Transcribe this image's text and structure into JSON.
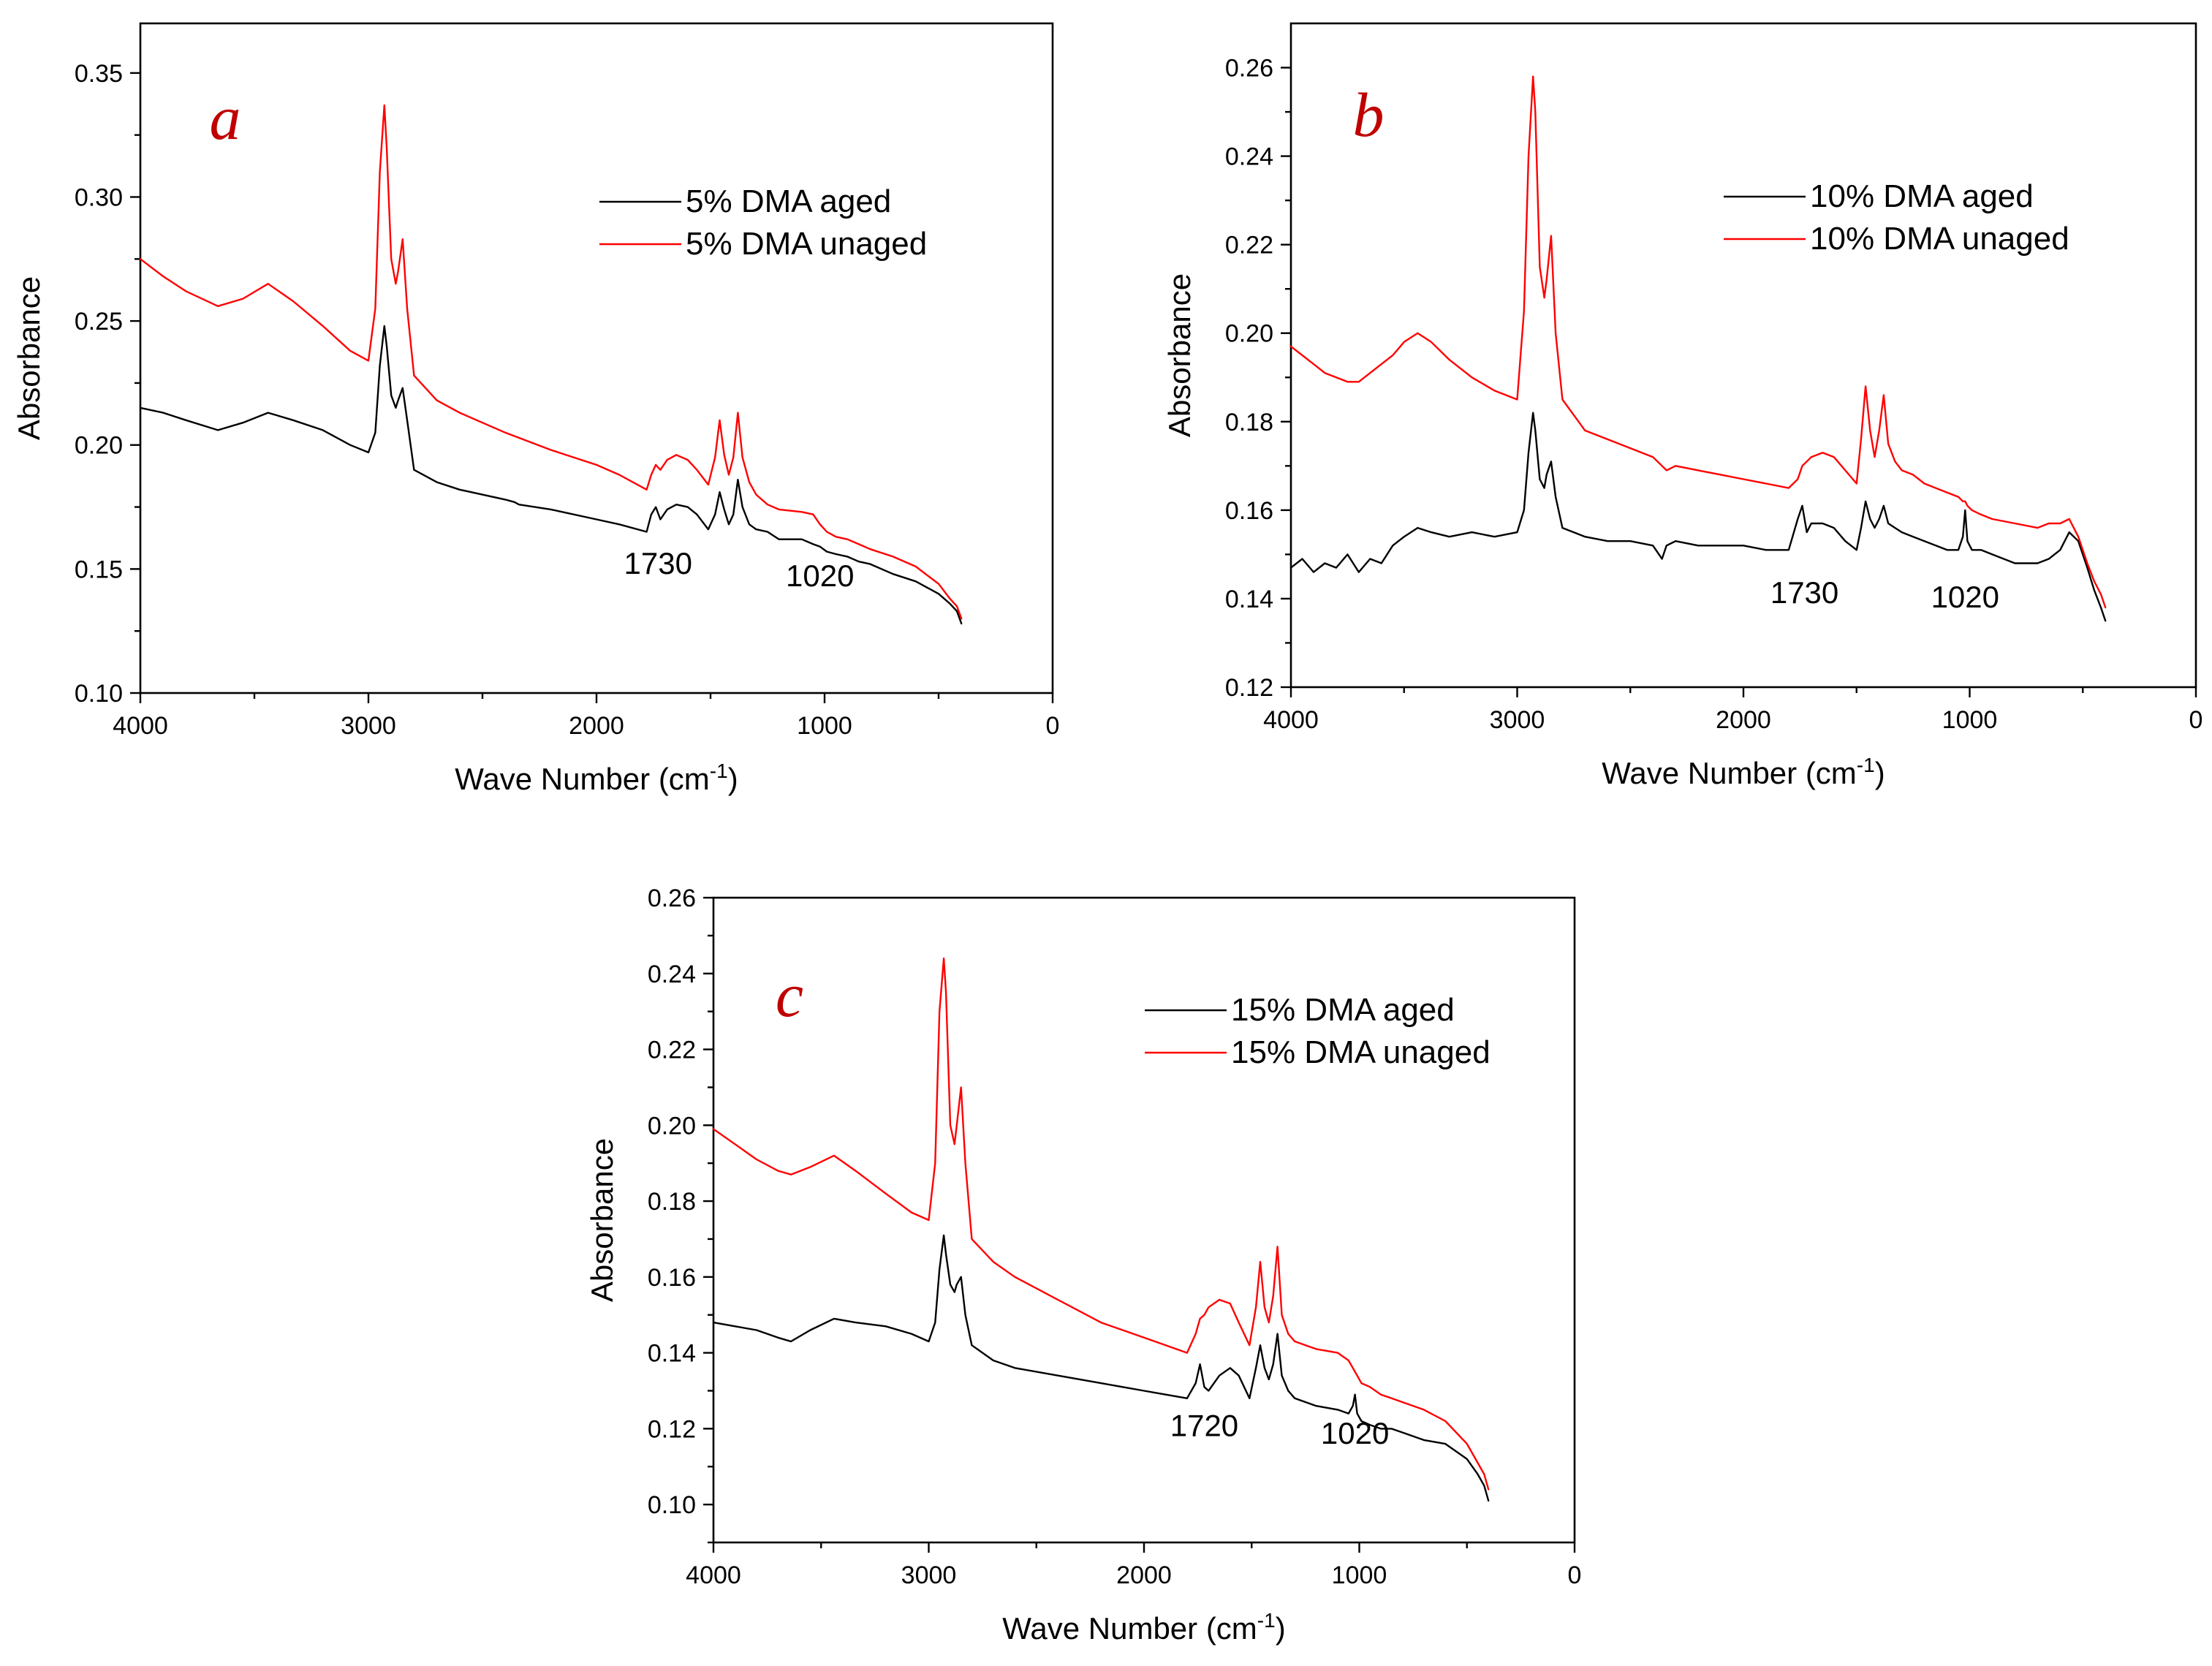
{
  "chart_data": [
    {
      "type": "line",
      "panel_label": "a",
      "xlabel": "Wave Number (cm",
      "xlabel_sup": "-1",
      "xlabel_close": ")",
      "ylabel": "Absorbance",
      "xlim": [
        4000,
        0
      ],
      "ylim": [
        0.1,
        0.37
      ],
      "x_ticks": [
        4000,
        3000,
        2000,
        1000,
        0
      ],
      "y_ticks": [
        "0.10",
        "0.15",
        "0.20",
        "0.25",
        "0.30",
        "0.35"
      ],
      "grid": false,
      "legend_position": "upper-right",
      "colors": [
        "#000000",
        "#ff0000"
      ],
      "annotations": [
        {
          "text": "1730",
          "x": 1730,
          "y": 0.148
        },
        {
          "text": "1020",
          "x": 1020,
          "y": 0.143
        }
      ],
      "series": [
        {
          "name": "5% DMA aged",
          "color": "#000000",
          "x": [
            4000,
            3900,
            3800,
            3660,
            3550,
            3440,
            3330,
            3200,
            3080,
            3000,
            2970,
            2950,
            2930,
            2920,
            2900,
            2880,
            2870,
            2850,
            2830,
            2800,
            2700,
            2600,
            2400,
            2360,
            2340,
            2200,
            2000,
            1900,
            1780,
            1760,
            1740,
            1720,
            1690,
            1650,
            1600,
            1560,
            1510,
            1480,
            1460,
            1440,
            1420,
            1400,
            1380,
            1360,
            1330,
            1300,
            1250,
            1200,
            1100,
            1050,
            1020,
            990,
            950,
            900,
            850,
            800,
            700,
            600,
            500,
            450,
            420,
            400
          ],
          "y": [
            0.215,
            0.213,
            0.21,
            0.206,
            0.209,
            0.213,
            0.21,
            0.206,
            0.2,
            0.197,
            0.205,
            0.232,
            0.248,
            0.24,
            0.22,
            0.215,
            0.218,
            0.223,
            0.21,
            0.19,
            0.185,
            0.182,
            0.178,
            0.177,
            0.176,
            0.174,
            0.17,
            0.168,
            0.165,
            0.172,
            0.175,
            0.17,
            0.174,
            0.176,
            0.175,
            0.172,
            0.166,
            0.172,
            0.181,
            0.174,
            0.168,
            0.172,
            0.186,
            0.175,
            0.168,
            0.166,
            0.165,
            0.162,
            0.162,
            0.16,
            0.159,
            0.157,
            0.156,
            0.155,
            0.153,
            0.152,
            0.148,
            0.145,
            0.14,
            0.136,
            0.133,
            0.128
          ]
        },
        {
          "name": "5% DMA unaged",
          "color": "#ff0000",
          "x": [
            4000,
            3900,
            3800,
            3660,
            3550,
            3440,
            3330,
            3200,
            3080,
            3000,
            2970,
            2950,
            2930,
            2920,
            2900,
            2880,
            2870,
            2850,
            2830,
            2800,
            2700,
            2600,
            2400,
            2200,
            2000,
            1900,
            1780,
            1760,
            1740,
            1720,
            1690,
            1650,
            1600,
            1560,
            1510,
            1480,
            1460,
            1440,
            1420,
            1400,
            1380,
            1360,
            1330,
            1300,
            1250,
            1200,
            1100,
            1050,
            1020,
            990,
            950,
            900,
            850,
            800,
            700,
            600,
            500,
            450,
            420,
            400
          ],
          "y": [
            0.275,
            0.268,
            0.262,
            0.256,
            0.259,
            0.265,
            0.258,
            0.248,
            0.238,
            0.234,
            0.255,
            0.31,
            0.337,
            0.32,
            0.275,
            0.265,
            0.27,
            0.283,
            0.255,
            0.228,
            0.218,
            0.213,
            0.205,
            0.198,
            0.192,
            0.188,
            0.182,
            0.188,
            0.192,
            0.19,
            0.194,
            0.196,
            0.194,
            0.19,
            0.184,
            0.195,
            0.21,
            0.196,
            0.188,
            0.195,
            0.213,
            0.195,
            0.185,
            0.18,
            0.176,
            0.174,
            0.173,
            0.172,
            0.168,
            0.165,
            0.163,
            0.162,
            0.16,
            0.158,
            0.155,
            0.151,
            0.144,
            0.138,
            0.135,
            0.13
          ]
        }
      ]
    },
    {
      "type": "line",
      "panel_label": "b",
      "xlabel": "Wave Number (cm",
      "xlabel_sup": "-1",
      "xlabel_close": ")",
      "ylabel": "Absorbance",
      "xlim": [
        4000,
        0
      ],
      "ylim": [
        0.12,
        0.27
      ],
      "x_ticks": [
        4000,
        3000,
        2000,
        1000,
        0
      ],
      "y_ticks": [
        "0.12",
        "0.14",
        "0.16",
        "0.18",
        "0.20",
        "0.22",
        "0.24",
        "0.26"
      ],
      "grid": false,
      "legend_position": "upper-right",
      "colors": [
        "#000000",
        "#ff0000"
      ],
      "annotations": [
        {
          "text": "1730",
          "x": 1730,
          "y": 0.139
        },
        {
          "text": "1020",
          "x": 1020,
          "y": 0.138
        }
      ],
      "series": [
        {
          "name": "10% DMA aged",
          "color": "#000000",
          "x": [
            4000,
            3950,
            3900,
            3850,
            3800,
            3750,
            3700,
            3650,
            3600,
            3550,
            3500,
            3440,
            3380,
            3300,
            3200,
            3100,
            3000,
            2970,
            2950,
            2930,
            2920,
            2900,
            2880,
            2870,
            2850,
            2830,
            2800,
            2700,
            2600,
            2500,
            2400,
            2360,
            2340,
            2300,
            2200,
            2100,
            2000,
            1900,
            1800,
            1760,
            1740,
            1720,
            1700,
            1650,
            1600,
            1550,
            1500,
            1480,
            1460,
            1440,
            1420,
            1400,
            1380,
            1360,
            1330,
            1300,
            1250,
            1200,
            1100,
            1050,
            1030,
            1020,
            1010,
            990,
            950,
            900,
            800,
            700,
            650,
            600,
            560,
            520,
            480,
            450,
            420,
            400
          ],
          "y": [
            0.147,
            0.149,
            0.146,
            0.148,
            0.147,
            0.15,
            0.146,
            0.149,
            0.148,
            0.152,
            0.154,
            0.156,
            0.155,
            0.154,
            0.155,
            0.154,
            0.155,
            0.16,
            0.173,
            0.182,
            0.178,
            0.167,
            0.165,
            0.168,
            0.171,
            0.163,
            0.156,
            0.154,
            0.153,
            0.153,
            0.152,
            0.149,
            0.152,
            0.153,
            0.152,
            0.152,
            0.152,
            0.151,
            0.151,
            0.158,
            0.161,
            0.155,
            0.157,
            0.157,
            0.156,
            0.153,
            0.151,
            0.156,
            0.162,
            0.158,
            0.156,
            0.158,
            0.161,
            0.157,
            0.156,
            0.155,
            0.154,
            0.153,
            0.151,
            0.151,
            0.154,
            0.16,
            0.153,
            0.151,
            0.151,
            0.15,
            0.148,
            0.148,
            0.149,
            0.151,
            0.155,
            0.153,
            0.147,
            0.142,
            0.138,
            0.135
          ]
        },
        {
          "name": "10% DMA unaged",
          "color": "#ff0000",
          "x": [
            4000,
            3950,
            3900,
            3850,
            3800,
            3750,
            3700,
            3650,
            3600,
            3550,
            3500,
            3440,
            3380,
            3300,
            3200,
            3100,
            3000,
            2970,
            2950,
            2930,
            2920,
            2900,
            2880,
            2870,
            2850,
            2830,
            2800,
            2700,
            2600,
            2500,
            2400,
            2360,
            2340,
            2300,
            2200,
            2100,
            2000,
            1900,
            1800,
            1760,
            1740,
            1720,
            1700,
            1650,
            1600,
            1550,
            1500,
            1480,
            1460,
            1440,
            1420,
            1400,
            1380,
            1360,
            1330,
            1300,
            1250,
            1200,
            1100,
            1050,
            1030,
            1020,
            1010,
            990,
            950,
            900,
            800,
            700,
            650,
            600,
            560,
            520,
            480,
            450,
            420,
            400
          ],
          "y": [
            0.197,
            0.195,
            0.193,
            0.191,
            0.19,
            0.189,
            0.189,
            0.191,
            0.193,
            0.195,
            0.198,
            0.2,
            0.198,
            0.194,
            0.19,
            0.187,
            0.185,
            0.205,
            0.24,
            0.258,
            0.25,
            0.215,
            0.208,
            0.212,
            0.222,
            0.2,
            0.185,
            0.178,
            0.176,
            0.174,
            0.172,
            0.17,
            0.169,
            0.17,
            0.169,
            0.168,
            0.167,
            0.166,
            0.165,
            0.167,
            0.17,
            0.171,
            0.172,
            0.173,
            0.172,
            0.169,
            0.166,
            0.176,
            0.188,
            0.178,
            0.172,
            0.178,
            0.186,
            0.175,
            0.171,
            0.169,
            0.168,
            0.166,
            0.164,
            0.163,
            0.162,
            0.162,
            0.161,
            0.16,
            0.159,
            0.158,
            0.157,
            0.156,
            0.157,
            0.157,
            0.158,
            0.154,
            0.148,
            0.144,
            0.141,
            0.138
          ]
        }
      ]
    },
    {
      "type": "line",
      "panel_label": "c",
      "xlabel": "Wave Number (cm",
      "xlabel_sup": "-1",
      "xlabel_close": ")",
      "ylabel": "Absorbance",
      "xlim": [
        4000,
        0
      ],
      "ylim": [
        0.09,
        0.26
      ],
      "x_ticks": [
        4000,
        3000,
        2000,
        1000,
        0
      ],
      "y_ticks": [
        "0.10",
        "0.12",
        "0.14",
        "0.16",
        "0.18",
        "0.20",
        "0.22",
        "0.24",
        "0.26"
      ],
      "grid": false,
      "legend_position": "upper-right",
      "colors": [
        "#000000",
        "#ff0000"
      ],
      "annotations": [
        {
          "text": "1720",
          "x": 1720,
          "y": 0.118
        },
        {
          "text": "1020",
          "x": 1020,
          "y": 0.116
        }
      ],
      "series": [
        {
          "name": "15% DMA  aged",
          "color": "#000000",
          "x": [
            4000,
            3900,
            3800,
            3700,
            3640,
            3550,
            3440,
            3340,
            3200,
            3080,
            3000,
            2970,
            2950,
            2930,
            2920,
            2900,
            2880,
            2870,
            2850,
            2830,
            2800,
            2700,
            2600,
            2400,
            2200,
            2000,
            1800,
            1760,
            1740,
            1720,
            1700,
            1650,
            1600,
            1560,
            1510,
            1480,
            1460,
            1440,
            1420,
            1400,
            1380,
            1360,
            1330,
            1300,
            1250,
            1200,
            1100,
            1050,
            1030,
            1020,
            1010,
            990,
            950,
            900,
            850,
            800,
            700,
            600,
            500,
            450,
            420,
            400
          ],
          "y": [
            0.148,
            0.147,
            0.146,
            0.144,
            0.143,
            0.146,
            0.149,
            0.148,
            0.147,
            0.145,
            0.143,
            0.148,
            0.162,
            0.171,
            0.166,
            0.158,
            0.156,
            0.158,
            0.16,
            0.15,
            0.142,
            0.138,
            0.136,
            0.134,
            0.132,
            0.13,
            0.128,
            0.132,
            0.137,
            0.131,
            0.13,
            0.134,
            0.136,
            0.134,
            0.128,
            0.136,
            0.142,
            0.136,
            0.133,
            0.137,
            0.145,
            0.134,
            0.13,
            0.128,
            0.127,
            0.126,
            0.125,
            0.124,
            0.126,
            0.129,
            0.124,
            0.122,
            0.121,
            0.12,
            0.12,
            0.119,
            0.117,
            0.116,
            0.112,
            0.108,
            0.105,
            0.101
          ]
        },
        {
          "name": "15% DMA  unaged",
          "color": "#ff0000",
          "x": [
            4000,
            3900,
            3800,
            3700,
            3640,
            3550,
            3440,
            3340,
            3200,
            3080,
            3000,
            2970,
            2950,
            2930,
            2920,
            2900,
            2880,
            2870,
            2850,
            2830,
            2800,
            2700,
            2600,
            2400,
            2200,
            2000,
            1800,
            1760,
            1740,
            1720,
            1700,
            1650,
            1600,
            1560,
            1510,
            1480,
            1460,
            1440,
            1420,
            1400,
            1380,
            1360,
            1330,
            1300,
            1250,
            1200,
            1100,
            1050,
            1030,
            1020,
            1010,
            990,
            950,
            900,
            850,
            800,
            700,
            600,
            500,
            450,
            420,
            400
          ],
          "y": [
            0.199,
            0.195,
            0.191,
            0.188,
            0.187,
            0.189,
            0.192,
            0.188,
            0.182,
            0.177,
            0.175,
            0.19,
            0.23,
            0.244,
            0.235,
            0.2,
            0.195,
            0.2,
            0.21,
            0.19,
            0.17,
            0.164,
            0.16,
            0.154,
            0.148,
            0.144,
            0.14,
            0.145,
            0.149,
            0.15,
            0.152,
            0.154,
            0.153,
            0.148,
            0.142,
            0.152,
            0.164,
            0.152,
            0.148,
            0.155,
            0.168,
            0.15,
            0.145,
            0.143,
            0.142,
            0.141,
            0.14,
            0.138,
            0.136,
            0.135,
            0.134,
            0.132,
            0.131,
            0.129,
            0.128,
            0.127,
            0.125,
            0.122,
            0.116,
            0.111,
            0.108,
            0.104
          ]
        }
      ]
    }
  ]
}
